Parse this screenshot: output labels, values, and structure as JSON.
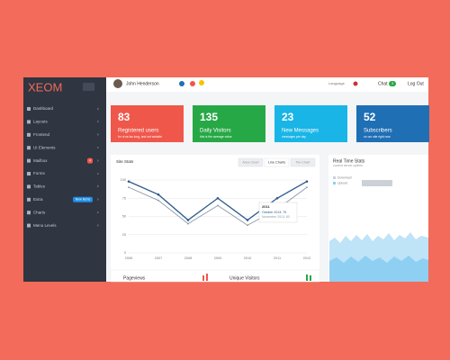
{
  "brand": "XEOM",
  "topbar": {
    "user": "John Henderson",
    "language": "Language",
    "chat": "Chat",
    "chat_badge": "3",
    "logout": "Log Out"
  },
  "sidebar": [
    {
      "label": "Dashboard"
    },
    {
      "label": "Layouts"
    },
    {
      "label": "Frontend"
    },
    {
      "label": "UI Elements"
    },
    {
      "label": "Mailbox",
      "badge": "4"
    },
    {
      "label": "Forms"
    },
    {
      "label": "Tables"
    },
    {
      "label": "Extra",
      "badge": "New Items"
    },
    {
      "label": "Charts"
    },
    {
      "label": "Menu Levels"
    }
  ],
  "cards": [
    {
      "value": "83",
      "title": "Registered users",
      "text": "for ni se las long, and ont website",
      "color": "#f0574b"
    },
    {
      "value": "135",
      "title": "Daily Visitors",
      "text": "this is the average value",
      "color": "#27a846"
    },
    {
      "value": "23",
      "title": "New Messages",
      "text": "messages per day",
      "color": "#19b5e6"
    },
    {
      "value": "52",
      "title": "Subscribers",
      "text": "on our site right now",
      "color": "#1f6fb5"
    }
  ],
  "chart_data": {
    "type": "line",
    "title": "Site Stats",
    "buttons": [
      "Area Chart",
      "Line Charts",
      "Pie Chart"
    ],
    "categories": [
      "2006",
      "2007",
      "2008",
      "2009",
      "2010",
      "2011",
      "2012"
    ],
    "series": [
      {
        "color": "#2c5a8c",
        "values": [
          98,
          80,
          45,
          75,
          45,
          75,
          98
        ]
      },
      {
        "color": "#8a98a8",
        "values": [
          90,
          72,
          40,
          65,
          38,
          60,
          90
        ]
      }
    ],
    "ylim": [
      0,
      100
    ],
    "yticks": [
      0,
      25,
      50,
      75,
      100
    ],
    "grid": true,
    "tooltip": {
      "title": "2011",
      "lines": [
        "October 2013: 75",
        "November 2013: 60"
      ]
    }
  },
  "bottom": [
    "Pageviews",
    "Unique Visitors"
  ],
  "realtime": {
    "title": "Real Time Stats",
    "subtitle": "current server uptime",
    "legend": [
      "Download",
      "Upload"
    ]
  }
}
